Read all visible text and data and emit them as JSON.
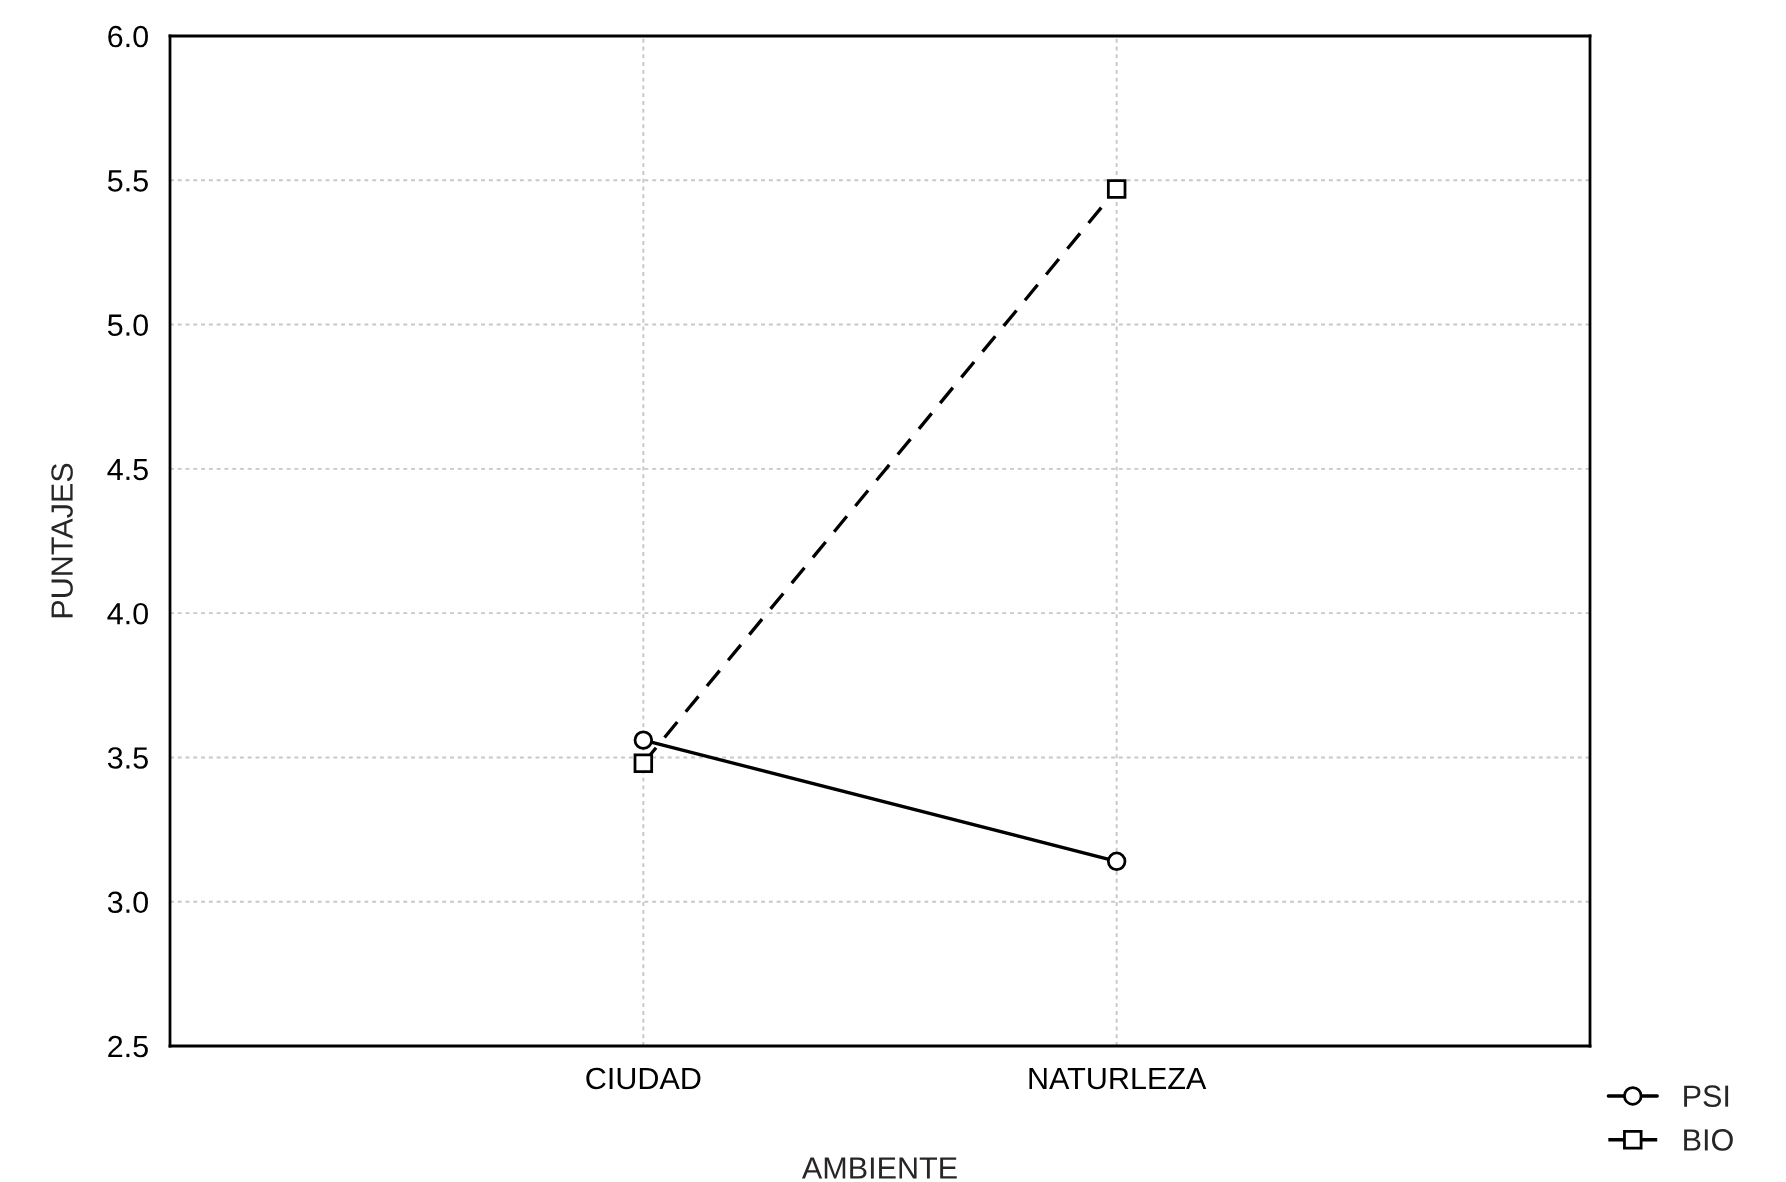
{
  "chart_data": {
    "type": "line",
    "xlabel": "AMBIENTE",
    "ylabel": "PUNTAJES",
    "categories": [
      "CIUDAD",
      "NATURLEZA"
    ],
    "series": [
      {
        "name": "PSI",
        "color": "#000000",
        "values": [
          3.56,
          3.14
        ],
        "marker": "circle",
        "line_style": "solid"
      },
      {
        "name": "BIO",
        "color": "#000000",
        "values": [
          3.48,
          5.47
        ],
        "marker": "square",
        "line_style": "dashed"
      }
    ],
    "ylim": [
      2.5,
      6.0
    ],
    "yticks": [
      {
        "value": 2.5,
        "label": "2.5"
      },
      {
        "value": 3.0,
        "label": "3.0"
      },
      {
        "value": 3.5,
        "label": "3.5"
      },
      {
        "value": 4.0,
        "label": "4.0"
      },
      {
        "value": 4.5,
        "label": "4.5"
      },
      {
        "value": 5.0,
        "label": "5.0"
      },
      {
        "value": 5.5,
        "label": "5.5"
      },
      {
        "value": 6.0,
        "label": "6.0"
      }
    ],
    "grid": true,
    "legend": "bottom right"
  }
}
